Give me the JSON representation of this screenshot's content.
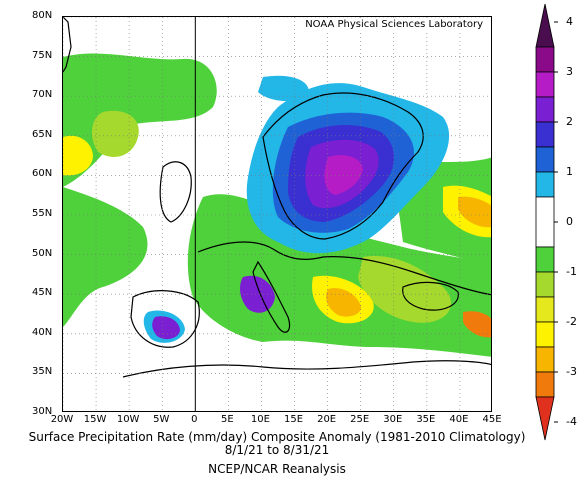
{
  "credit": "NOAA Physical Sciences Laboratory",
  "caption": {
    "line1": "Surface Precipitation Rate (mm/day) Composite Anomaly (1981-2010 Climatology)",
    "line2": "8/1/21  to 8/31/21",
    "line3": "NCEP/NCAR Reanalysis"
  },
  "map": {
    "lon_range": [
      -20,
      45
    ],
    "lat_range": [
      30,
      80
    ],
    "lon_ticks": [
      "20W",
      "15W",
      "10W",
      "5W",
      "0",
      "5E",
      "10E",
      "15E",
      "20E",
      "25E",
      "30E",
      "35E",
      "40E",
      "45E"
    ],
    "lat_ticks": [
      "80N",
      "75N",
      "70N",
      "65N",
      "60N",
      "55N",
      "50N",
      "45N",
      "40N",
      "35N",
      "30N"
    ],
    "grid": true,
    "prime_meridian_line": true
  },
  "colorbar": {
    "labels": [
      "4",
      "3",
      "2",
      "1",
      "0",
      "-1",
      "-2",
      "-3",
      "-4"
    ],
    "levels": [
      {
        "min": 3.5,
        "max": 4,
        "color": "#4a0e4e"
      },
      {
        "min": 3,
        "max": 3.5,
        "color": "#8a0a8a"
      },
      {
        "min": 2.5,
        "max": 3,
        "color": "#b51cc5"
      },
      {
        "min": 2,
        "max": 2.5,
        "color": "#7a1fd1"
      },
      {
        "min": 1.5,
        "max": 2,
        "color": "#3a2fd0"
      },
      {
        "min": 1,
        "max": 1.5,
        "color": "#1f62d6"
      },
      {
        "min": 0.5,
        "max": 1,
        "color": "#23b7e8"
      },
      {
        "min": -0.5,
        "max": 0.5,
        "color": "#ffffff"
      },
      {
        "min": -1,
        "max": -0.5,
        "color": "#4fd13b"
      },
      {
        "min": -1.5,
        "max": -1,
        "color": "#a6d92d"
      },
      {
        "min": -2,
        "max": -1.5,
        "color": "#e4e81d"
      },
      {
        "min": -2.5,
        "max": -2,
        "color": "#fff200"
      },
      {
        "min": -3,
        "max": -2.5,
        "color": "#f7b500"
      },
      {
        "min": -3.5,
        "max": -3,
        "color": "#f07a0c"
      },
      {
        "min": -4,
        "max": -3.5,
        "color": "#e0301e"
      }
    ]
  }
}
